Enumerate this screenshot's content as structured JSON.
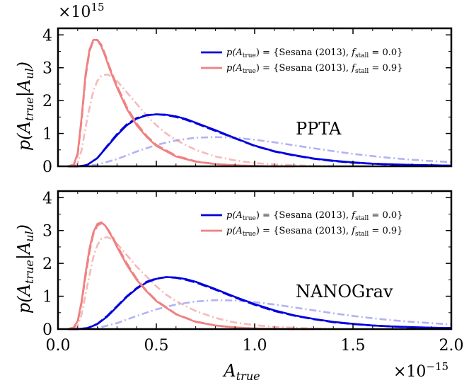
{
  "figure": {
    "xlabel": "A_true",
    "ylabel": "p(A_true|A_ul)",
    "y_multiplier": "×10^15",
    "x_multiplier": "×10^−15"
  },
  "chart_data": [
    {
      "type": "line",
      "panel_label": "PPTA",
      "xlim": [
        0.0,
        2.0
      ],
      "ylim": [
        0,
        4.2
      ],
      "x_unit_multiplier": "1e-15",
      "y_unit_multiplier": "1e15",
      "xticks": [
        "0.0",
        "0.5",
        "1.0",
        "1.5",
        "2.0"
      ],
      "yticks": [
        "0",
        "1",
        "2",
        "3",
        "4"
      ],
      "tick_labels_x_visible": false,
      "legend_placement": "upper-right",
      "legend": [
        {
          "text": "p(A_true) = {Sesana (2013), f_stall = 0.0}",
          "color": "#0000dd"
        },
        {
          "text": "p(A_true) = {Sesana (2013), f_stall = 0.9}",
          "color": "#f08080"
        }
      ],
      "series": [
        {
          "name": "p(A_true) = {Sesana (2013), f_stall = 0.0}",
          "style": "solid",
          "color": "#0000dd",
          "opacity": 1.0,
          "x": [
            0.05,
            0.1,
            0.13,
            0.15,
            0.2,
            0.25,
            0.3,
            0.35,
            0.4,
            0.45,
            0.5,
            0.55,
            0.6,
            0.65,
            0.7,
            0.8,
            0.9,
            1.0,
            1.1,
            1.2,
            1.3,
            1.4,
            1.5,
            1.6,
            1.7,
            1.8,
            1.9,
            2.0
          ],
          "y": [
            0,
            0,
            0.02,
            0.05,
            0.25,
            0.6,
            0.95,
            1.25,
            1.45,
            1.55,
            1.58,
            1.57,
            1.52,
            1.44,
            1.33,
            1.1,
            0.86,
            0.63,
            0.46,
            0.34,
            0.24,
            0.17,
            0.12,
            0.08,
            0.06,
            0.04,
            0.03,
            0.02
          ]
        },
        {
          "name": "",
          "style": "dashed",
          "color": "#0000dd",
          "opacity": 1.0,
          "x": [
            0.05,
            0.1,
            0.13,
            0.15,
            0.2,
            0.25,
            0.3,
            0.35,
            0.4,
            0.45,
            0.5,
            0.55,
            0.6,
            0.65,
            0.7,
            0.8,
            0.9,
            1.0,
            1.1,
            1.2,
            1.3,
            1.4,
            1.5,
            1.6,
            1.7,
            1.8,
            1.9,
            2.0
          ],
          "y": [
            0,
            0,
            0.02,
            0.05,
            0.25,
            0.62,
            0.98,
            1.28,
            1.47,
            1.56,
            1.58,
            1.56,
            1.5,
            1.42,
            1.31,
            1.08,
            0.85,
            0.62,
            0.45,
            0.33,
            0.23,
            0.16,
            0.11,
            0.08,
            0.05,
            0.04,
            0.03,
            0.02
          ]
        },
        {
          "name": "",
          "style": "dashdot",
          "color": "#0000dd",
          "opacity": 0.3,
          "x": [
            0.1,
            0.15,
            0.2,
            0.3,
            0.4,
            0.5,
            0.6,
            0.7,
            0.8,
            0.9,
            1.0,
            1.1,
            1.2,
            1.3,
            1.4,
            1.5,
            1.6,
            1.7,
            1.8,
            1.9,
            2.0
          ],
          "y": [
            0,
            0.01,
            0.05,
            0.22,
            0.45,
            0.65,
            0.79,
            0.87,
            0.89,
            0.87,
            0.81,
            0.73,
            0.64,
            0.55,
            0.46,
            0.38,
            0.31,
            0.25,
            0.2,
            0.16,
            0.13
          ]
        },
        {
          "name": "p(A_true) = {Sesana (2013), f_stall = 0.9}",
          "style": "solid",
          "color": "#f08080",
          "opacity": 1.0,
          "x": [
            0.05,
            0.08,
            0.1,
            0.12,
            0.14,
            0.16,
            0.18,
            0.2,
            0.22,
            0.24,
            0.26,
            0.28,
            0.3,
            0.35,
            0.4,
            0.45,
            0.5,
            0.6,
            0.7,
            0.8,
            0.9,
            1.0,
            1.1,
            1.2
          ],
          "y": [
            0,
            0.05,
            0.4,
            1.5,
            2.8,
            3.55,
            3.85,
            3.85,
            3.65,
            3.35,
            3.0,
            2.7,
            2.4,
            1.75,
            1.25,
            0.9,
            0.62,
            0.3,
            0.14,
            0.07,
            0.03,
            0.01,
            0,
            0
          ]
        },
        {
          "name": "",
          "style": "dashed",
          "color": "#f08080",
          "opacity": 1.0,
          "x": [
            0.05,
            0.08,
            0.1,
            0.12,
            0.14,
            0.16,
            0.18,
            0.2,
            0.22,
            0.24,
            0.26,
            0.28,
            0.3,
            0.35,
            0.4,
            0.45,
            0.5,
            0.6,
            0.7,
            0.8,
            0.9,
            1.0,
            1.1,
            1.2
          ],
          "y": [
            0,
            0.05,
            0.35,
            1.4,
            2.7,
            3.5,
            3.82,
            3.85,
            3.7,
            3.4,
            3.05,
            2.75,
            2.45,
            1.8,
            1.3,
            0.93,
            0.65,
            0.32,
            0.15,
            0.07,
            0.03,
            0.01,
            0,
            0
          ]
        },
        {
          "name": "",
          "style": "dashdot",
          "color": "#f08080",
          "opacity": 0.55,
          "x": [
            0.08,
            0.1,
            0.12,
            0.15,
            0.18,
            0.2,
            0.22,
            0.25,
            0.28,
            0.3,
            0.35,
            0.4,
            0.45,
            0.5,
            0.55,
            0.6,
            0.7,
            0.8,
            0.9,
            1.0,
            1.1,
            1.2,
            1.3,
            1.4
          ],
          "y": [
            0,
            0.1,
            0.5,
            1.5,
            2.3,
            2.6,
            2.75,
            2.8,
            2.7,
            2.6,
            2.25,
            1.9,
            1.55,
            1.25,
            1.0,
            0.8,
            0.5,
            0.3,
            0.18,
            0.1,
            0.06,
            0.03,
            0.01,
            0
          ]
        }
      ]
    },
    {
      "type": "line",
      "panel_label": "NANOGrav",
      "xlim": [
        0.0,
        2.0
      ],
      "ylim": [
        0,
        4.2
      ],
      "x_unit_multiplier": "1e-15",
      "y_unit_multiplier": "1e15",
      "xticks": [
        "0.0",
        "0.5",
        "1.0",
        "1.5",
        "2.0"
      ],
      "yticks": [
        "0",
        "1",
        "2",
        "3",
        "4"
      ],
      "tick_labels_x_visible": true,
      "legend_placement": "upper-right",
      "legend": [
        {
          "text": "p(A_true) = {Sesana (2013), f_stall = 0.0}",
          "color": "#0000dd"
        },
        {
          "text": "p(A_true) = {Sesana (2013), f_stall = 0.9}",
          "color": "#f08080"
        }
      ],
      "series": [
        {
          "name": "p(A_true) = {Sesana (2013), f_stall = 0.0}",
          "style": "solid",
          "color": "#0000dd",
          "opacity": 1.0,
          "x": [
            0.05,
            0.1,
            0.15,
            0.2,
            0.25,
            0.3,
            0.35,
            0.4,
            0.45,
            0.5,
            0.55,
            0.6,
            0.65,
            0.7,
            0.8,
            0.9,
            1.0,
            1.1,
            1.2,
            1.3,
            1.4,
            1.5,
            1.6,
            1.7,
            1.8,
            1.9,
            2.0
          ],
          "y": [
            0,
            0,
            0.03,
            0.15,
            0.38,
            0.68,
            0.98,
            1.23,
            1.42,
            1.53,
            1.58,
            1.57,
            1.52,
            1.44,
            1.22,
            0.98,
            0.76,
            0.57,
            0.42,
            0.31,
            0.22,
            0.16,
            0.11,
            0.08,
            0.06,
            0.04,
            0.03
          ]
        },
        {
          "name": "",
          "style": "dashed",
          "color": "#0000dd",
          "opacity": 1.0,
          "x": [
            0.05,
            0.1,
            0.15,
            0.2,
            0.25,
            0.3,
            0.35,
            0.4,
            0.45,
            0.5,
            0.55,
            0.6,
            0.65,
            0.7,
            0.8,
            0.9,
            1.0,
            1.1,
            1.2,
            1.3,
            1.4,
            1.5,
            1.6,
            1.7,
            1.8,
            1.9,
            2.0
          ],
          "y": [
            0,
            0,
            0.03,
            0.16,
            0.4,
            0.7,
            1.0,
            1.25,
            1.44,
            1.54,
            1.58,
            1.56,
            1.5,
            1.42,
            1.2,
            0.96,
            0.74,
            0.55,
            0.41,
            0.3,
            0.21,
            0.15,
            0.11,
            0.08,
            0.05,
            0.04,
            0.03
          ]
        },
        {
          "name": "",
          "style": "dashdot",
          "color": "#0000dd",
          "opacity": 0.3,
          "x": [
            0.15,
            0.2,
            0.3,
            0.4,
            0.5,
            0.6,
            0.7,
            0.8,
            0.9,
            1.0,
            1.1,
            1.2,
            1.3,
            1.4,
            1.5,
            1.6,
            1.7,
            1.8,
            1.9,
            2.0
          ],
          "y": [
            0,
            0.03,
            0.18,
            0.4,
            0.6,
            0.75,
            0.84,
            0.88,
            0.87,
            0.82,
            0.75,
            0.66,
            0.57,
            0.48,
            0.4,
            0.33,
            0.27,
            0.22,
            0.18,
            0.14
          ]
        },
        {
          "name": "p(A_true) = {Sesana (2013), f_stall = 0.9}",
          "style": "solid",
          "color": "#f08080",
          "opacity": 1.0,
          "x": [
            0.05,
            0.08,
            0.1,
            0.12,
            0.14,
            0.16,
            0.18,
            0.2,
            0.22,
            0.24,
            0.26,
            0.28,
            0.3,
            0.35,
            0.4,
            0.45,
            0.5,
            0.6,
            0.7,
            0.8,
            0.9,
            1.0,
            1.1,
            1.2,
            1.3
          ],
          "y": [
            0,
            0.05,
            0.25,
            0.85,
            1.7,
            2.45,
            2.95,
            3.2,
            3.25,
            3.15,
            2.95,
            2.75,
            2.5,
            1.95,
            1.5,
            1.15,
            0.85,
            0.45,
            0.22,
            0.11,
            0.05,
            0.02,
            0.01,
            0,
            0
          ]
        },
        {
          "name": "",
          "style": "dashed",
          "color": "#f08080",
          "opacity": 1.0,
          "x": [
            0.05,
            0.08,
            0.1,
            0.12,
            0.14,
            0.16,
            0.18,
            0.2,
            0.22,
            0.24,
            0.26,
            0.28,
            0.3,
            0.35,
            0.4,
            0.45,
            0.5,
            0.6,
            0.7,
            0.8,
            0.9,
            1.0,
            1.1,
            1.2,
            1.3
          ],
          "y": [
            0,
            0.05,
            0.22,
            0.8,
            1.6,
            2.35,
            2.9,
            3.15,
            3.22,
            3.15,
            2.98,
            2.78,
            2.55,
            2.0,
            1.53,
            1.17,
            0.87,
            0.46,
            0.23,
            0.11,
            0.05,
            0.02,
            0.01,
            0,
            0
          ]
        },
        {
          "name": "",
          "style": "dashdot",
          "color": "#f08080",
          "opacity": 0.55,
          "x": [
            0.08,
            0.1,
            0.12,
            0.15,
            0.18,
            0.2,
            0.22,
            0.25,
            0.28,
            0.3,
            0.35,
            0.4,
            0.45,
            0.5,
            0.55,
            0.6,
            0.7,
            0.8,
            0.9,
            1.0,
            1.1,
            1.2,
            1.3,
            1.4
          ],
          "y": [
            0,
            0.1,
            0.45,
            1.35,
            2.2,
            2.55,
            2.75,
            2.8,
            2.72,
            2.6,
            2.25,
            1.9,
            1.6,
            1.3,
            1.05,
            0.85,
            0.55,
            0.34,
            0.2,
            0.12,
            0.07,
            0.04,
            0.02,
            0
          ]
        }
      ]
    }
  ]
}
